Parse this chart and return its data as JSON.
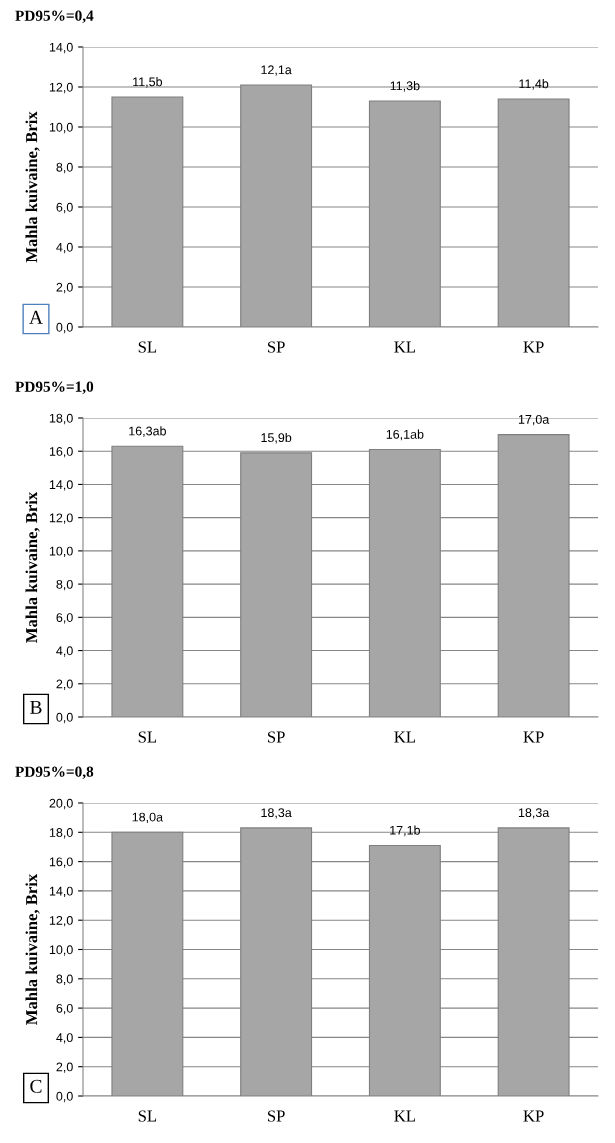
{
  "chart_data": [
    {
      "type": "bar",
      "title": "PD95%=0,4",
      "ylabel": "Mahla kuivaine, Brix",
      "categories": [
        "SL",
        "SP",
        "KL",
        "KP"
      ],
      "values": [
        11.5,
        12.1,
        11.3,
        11.4
      ],
      "value_labels": [
        "11,5b",
        "12,1a",
        "11,3b",
        "11,4b"
      ],
      "color": "#a6a6a6",
      "ylim": [
        0,
        14
      ],
      "yticks": [
        {
          "value": 0,
          "label": "0,0"
        },
        {
          "value": 2,
          "label": "2,0"
        },
        {
          "value": 4,
          "label": "4,0"
        },
        {
          "value": 6,
          "label": "6,0"
        },
        {
          "value": 8,
          "label": "8,0"
        },
        {
          "value": 10,
          "label": "10,0"
        },
        {
          "value": 12,
          "label": "12,0"
        },
        {
          "value": 14,
          "label": "14,0"
        }
      ],
      "grid": "y",
      "legend": false,
      "annotations": [
        "A"
      ]
    },
    {
      "type": "bar",
      "title": "PD95%=1,0",
      "ylabel": "Mahla kuivaine, Brix",
      "categories": [
        "SL",
        "SP",
        "KL",
        "KP"
      ],
      "values": [
        16.3,
        15.9,
        16.1,
        17.0
      ],
      "value_labels": [
        "16,3ab",
        "15,9b",
        "16,1ab",
        "17,0a"
      ],
      "color": "#a6a6a6",
      "ylim": [
        0,
        18
      ],
      "yticks": [
        {
          "value": 0,
          "label": "0,0"
        },
        {
          "value": 2,
          "label": "2,0"
        },
        {
          "value": 4,
          "label": "4,0"
        },
        {
          "value": 6,
          "label": "6,0"
        },
        {
          "value": 8,
          "label": "8,0"
        },
        {
          "value": 10,
          "label": "10,0"
        },
        {
          "value": 12,
          "label": "12,0"
        },
        {
          "value": 14,
          "label": "14,0"
        },
        {
          "value": 16,
          "label": "16,0"
        },
        {
          "value": 18,
          "label": "18,0"
        }
      ],
      "grid": "y",
      "legend": false,
      "annotations": [
        "B"
      ]
    },
    {
      "type": "bar",
      "title": "PD95%=0,8",
      "ylabel": "Mahla kuivaine, Brix",
      "categories": [
        "SL",
        "SP",
        "KL",
        "KP"
      ],
      "values": [
        18.0,
        18.3,
        17.1,
        18.3
      ],
      "value_labels": [
        "18,0a",
        "18,3a",
        "17,1b",
        "18,3a"
      ],
      "color": "#a6a6a6",
      "ylim": [
        0,
        20
      ],
      "yticks": [
        {
          "value": 0,
          "label": "0,0"
        },
        {
          "value": 2,
          "label": "2,0"
        },
        {
          "value": 4,
          "label": "4,0"
        },
        {
          "value": 6,
          "label": "6,0"
        },
        {
          "value": 8,
          "label": "8,0"
        },
        {
          "value": 10,
          "label": "10,0"
        },
        {
          "value": 12,
          "label": "12,0"
        },
        {
          "value": 14,
          "label": "14,0"
        },
        {
          "value": 16,
          "label": "16,0"
        },
        {
          "value": 18,
          "label": "18,0"
        },
        {
          "value": 20,
          "label": "20,0"
        }
      ],
      "grid": "y",
      "legend": false,
      "annotations": [
        "C"
      ]
    }
  ]
}
